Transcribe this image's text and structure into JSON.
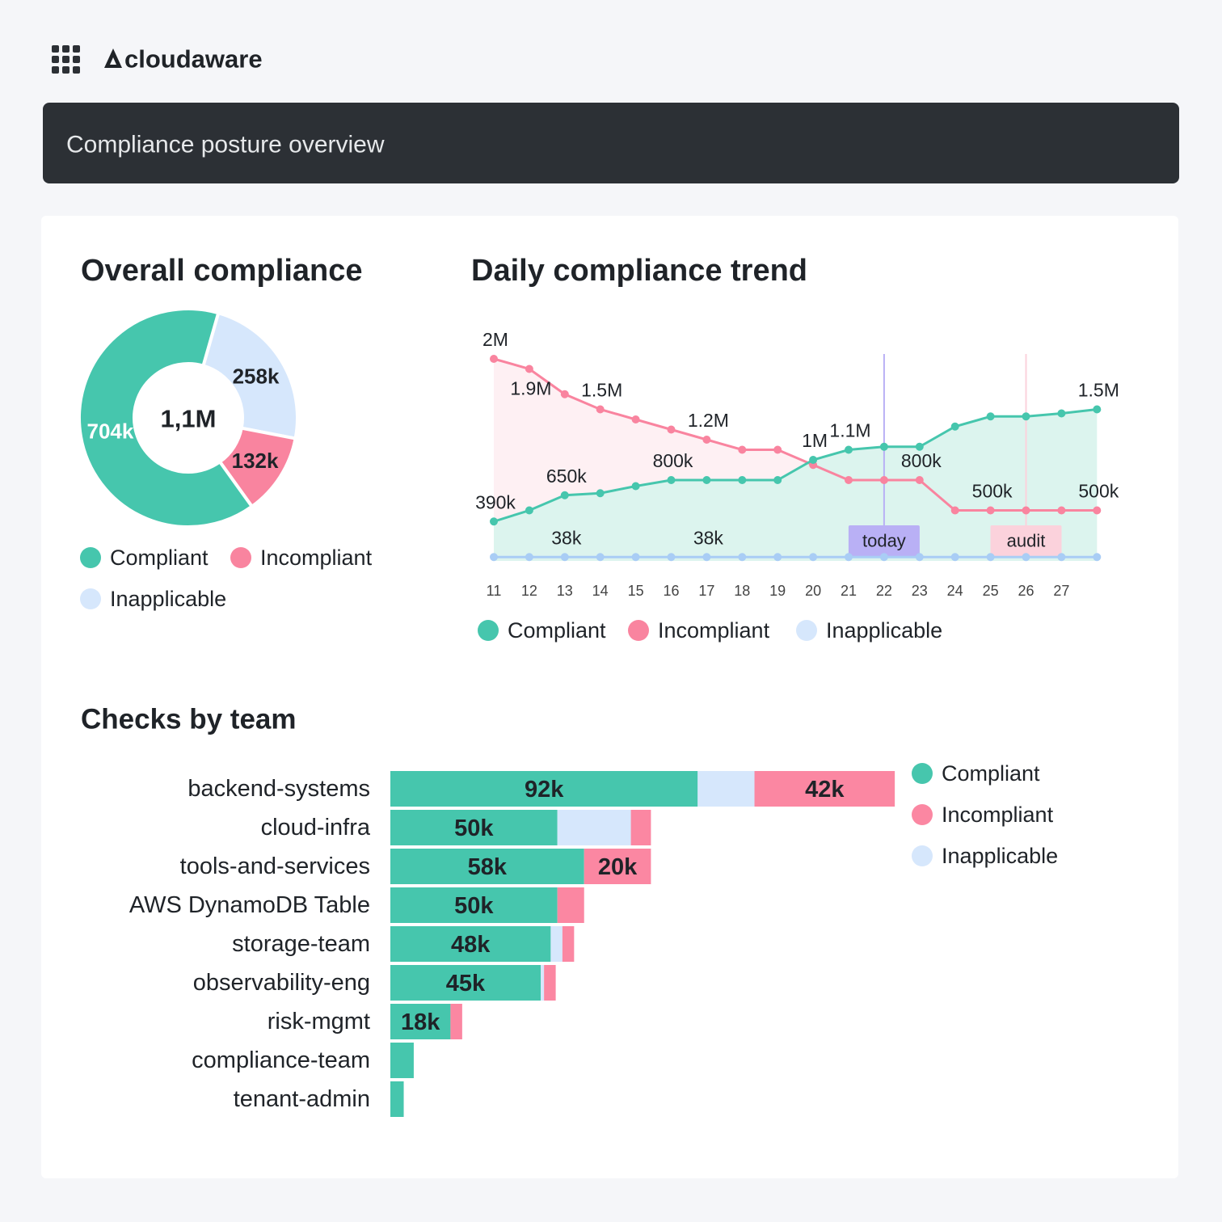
{
  "header": {
    "brand": "cloudaware",
    "title": "Compliance posture overview"
  },
  "chart_data": [
    {
      "type": "donut",
      "title": "Overall compliance",
      "center_label": "1,1M",
      "categories": [
        "Compliant",
        "Incompliant",
        "Inapplicable"
      ],
      "values": [
        704000,
        132000,
        258000
      ],
      "value_labels": [
        "704k",
        "132k",
        "258k"
      ],
      "colors": [
        "#46c6ad",
        "#f9849f",
        "#d6e7fc"
      ]
    },
    {
      "type": "line",
      "title": "Daily compliance trend",
      "categories": [
        "11",
        "12",
        "13",
        "14",
        "15",
        "16",
        "17",
        "18",
        "19",
        "20",
        "21",
        "22",
        "23",
        "24",
        "25",
        "26",
        "27",
        null
      ],
      "ylim": [
        0,
        2000000
      ],
      "series": [
        {
          "name": "Compliant",
          "color": "#46c6ad",
          "area_color": "#dcf4ee",
          "values": [
            390000,
            500000,
            650000,
            670000,
            740000,
            800000,
            800000,
            800000,
            800000,
            1000000,
            1100000,
            1130000,
            1130000,
            1330000,
            1430000,
            1430000,
            1460000,
            1500000
          ],
          "value_labels": [
            "390k",
            null,
            "650k",
            null,
            null,
            "800k",
            null,
            null,
            null,
            "1M",
            "1.1M",
            null,
            null,
            null,
            null,
            null,
            null,
            "1.5M"
          ]
        },
        {
          "name": "Incompliant",
          "color": "#f9849f",
          "area_color": "#fef0f3",
          "values": [
            2000000,
            1900000,
            1650000,
            1500000,
            1400000,
            1300000,
            1200000,
            1100000,
            1100000,
            950000,
            800000,
            800000,
            800000,
            500000,
            500000,
            500000,
            500000,
            500000
          ],
          "value_labels": [
            "2M",
            "1.9M",
            null,
            "1.5M",
            null,
            null,
            "1.2M",
            null,
            null,
            null,
            null,
            null,
            "800k",
            null,
            "500k",
            null,
            null,
            "500k"
          ]
        },
        {
          "name": "Inapplicable",
          "color": "#a9cdf5",
          "values": [
            38000,
            38000,
            38000,
            38000,
            38000,
            38000,
            38000,
            38000,
            38000,
            38000,
            38000,
            38000,
            38000,
            38000,
            38000,
            38000,
            38000,
            38000
          ],
          "value_labels": [
            null,
            null,
            "38k",
            null,
            null,
            null,
            "38k",
            null,
            null,
            null,
            null,
            null,
            null,
            null,
            null,
            null,
            null,
            null
          ]
        }
      ],
      "annotations": [
        {
          "label": "today",
          "at": "22",
          "color": "#b9b0f5"
        },
        {
          "label": "audit",
          "at": "26",
          "color": "#fbd2dc"
        }
      ]
    },
    {
      "type": "bar",
      "orientation": "horizontal",
      "stacked": true,
      "title": "Checks by team",
      "categories": [
        "backend-systems",
        "cloud-infra",
        "tools-and-services",
        "AWS DynamoDB Table",
        "storage-team",
        "observability-eng",
        "risk-mgmt",
        "compliance-team",
        "tenant-admin"
      ],
      "xlim": [
        0,
        150000
      ],
      "series": [
        {
          "name": "Compliant",
          "color": "#46c6ad",
          "values": [
            92000,
            50000,
            58000,
            50000,
            48000,
            45000,
            18000,
            7000,
            4000
          ],
          "value_labels": [
            "92k",
            "50k",
            "58k",
            "50k",
            "48k",
            "45k",
            "18k",
            null,
            null
          ]
        },
        {
          "name": "Incompliant",
          "color": "#fb87a2",
          "values": [
            42000,
            6000,
            20000,
            8000,
            3500,
            3500,
            3500,
            0,
            0
          ],
          "value_labels": [
            "42k",
            null,
            "20k",
            null,
            null,
            null,
            null,
            null,
            null
          ]
        },
        {
          "name": "Inapplicable",
          "color": "#d6e7fc",
          "values": [
            17000,
            22000,
            0,
            0,
            3500,
            1000,
            0,
            0,
            0
          ]
        }
      ]
    }
  ]
}
